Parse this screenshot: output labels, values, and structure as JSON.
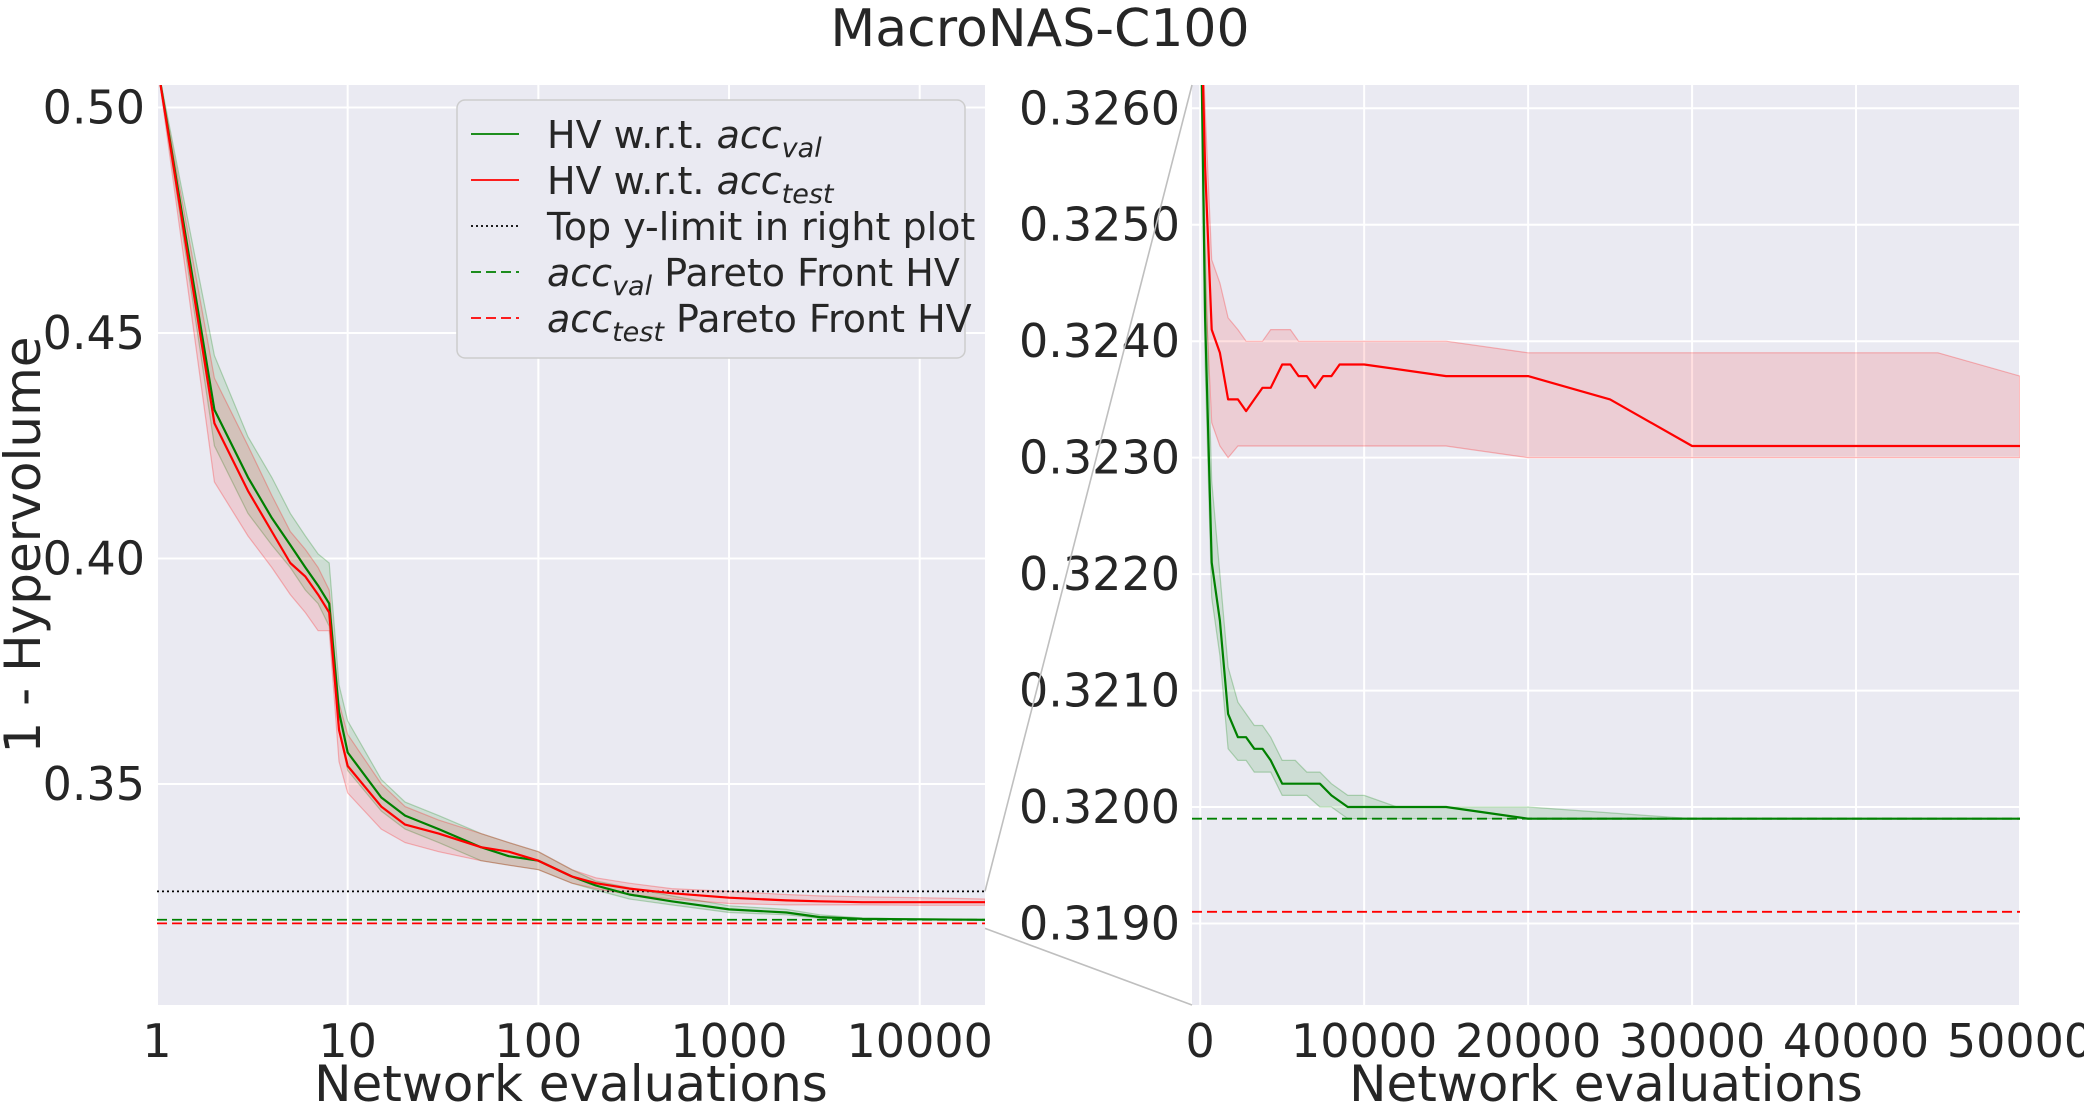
{
  "chart_data": [
    {
      "type": "line",
      "title": "MacroNAS-C100",
      "xlabel": "Network evaluations",
      "ylabel": "1 - Hypervolume",
      "xscale": "log",
      "xlim": [
        1,
        22000
      ],
      "ylim": [
        0.301,
        0.505
      ],
      "xticks": [
        1,
        10,
        100,
        1000,
        10000
      ],
      "xtick_labels": [
        "1",
        "10",
        "100",
        "1000",
        "10000"
      ],
      "yticks": [
        0.35,
        0.4,
        0.45,
        0.5
      ],
      "ytick_labels": [
        "0.35",
        "0.40",
        "0.45",
        "0.50"
      ],
      "grid": true,
      "legend_position": "top-right",
      "legend": [
        {
          "key": "val",
          "base": "HV w.r.t. ",
          "italic": "acc",
          "sub": "val",
          "after": "",
          "style": "solid",
          "color": "#008000"
        },
        {
          "key": "test",
          "base": "HV w.r.t. ",
          "italic": "acc",
          "sub": "test",
          "after": "",
          "style": "solid",
          "color": "#ff0000"
        },
        {
          "key": "toplimit",
          "base": "Top y-limit in right plot",
          "italic": "",
          "sub": "",
          "after": "",
          "style": "dotted",
          "color": "#000000"
        },
        {
          "key": "pf_val",
          "base": "",
          "italic": "acc",
          "sub": "val",
          "after": " Pareto Front HV",
          "style": "dashed",
          "color": "#008000"
        },
        {
          "key": "pf_test",
          "base": "",
          "italic": "acc",
          "sub": "test",
          "after": " Pareto Front HV",
          "style": "dashed",
          "color": "#ff0000"
        }
      ],
      "series": [
        {
          "key": "val",
          "color": "#008000",
          "x": [
            1,
            2,
            3,
            4,
            5,
            6,
            7,
            8,
            9,
            10,
            15,
            20,
            30,
            50,
            70,
            100,
            150,
            200,
            300,
            500,
            1000,
            2000,
            3000,
            5000,
            10000,
            22000
          ],
          "y": [
            0.51,
            0.433,
            0.418,
            0.409,
            0.403,
            0.398,
            0.394,
            0.39,
            0.366,
            0.357,
            0.347,
            0.343,
            0.34,
            0.336,
            0.334,
            0.333,
            0.3295,
            0.3275,
            0.3255,
            0.324,
            0.3222,
            0.3215,
            0.3205,
            0.3201,
            0.32,
            0.3199
          ],
          "lower": [
            0.51,
            0.425,
            0.41,
            0.403,
            0.398,
            0.393,
            0.39,
            0.385,
            0.362,
            0.353,
            0.344,
            0.34,
            0.337,
            0.333,
            0.332,
            0.331,
            0.328,
            0.3265,
            0.3245,
            0.3232,
            0.3215,
            0.321,
            0.3202,
            0.32,
            0.3199,
            0.3199
          ],
          "upper": [
            0.51,
            0.445,
            0.427,
            0.418,
            0.41,
            0.405,
            0.401,
            0.399,
            0.372,
            0.364,
            0.351,
            0.346,
            0.343,
            0.339,
            0.337,
            0.335,
            0.331,
            0.3285,
            0.327,
            0.3252,
            0.323,
            0.3222,
            0.321,
            0.3203,
            0.3201,
            0.32
          ]
        },
        {
          "key": "test",
          "color": "#ff0000",
          "x": [
            1,
            2,
            3,
            4,
            5,
            6,
            7,
            8,
            9,
            10,
            15,
            20,
            30,
            50,
            70,
            100,
            150,
            200,
            300,
            500,
            1000,
            2000,
            3000,
            5000,
            10000,
            22000
          ],
          "y": [
            0.51,
            0.43,
            0.415,
            0.406,
            0.399,
            0.396,
            0.392,
            0.388,
            0.362,
            0.354,
            0.345,
            0.341,
            0.339,
            0.336,
            0.335,
            0.333,
            0.3295,
            0.328,
            0.3268,
            0.3258,
            0.3248,
            0.3242,
            0.324,
            0.3238,
            0.3238,
            0.3238
          ],
          "lower": [
            0.51,
            0.417,
            0.405,
            0.398,
            0.392,
            0.388,
            0.384,
            0.384,
            0.355,
            0.348,
            0.34,
            0.337,
            0.335,
            0.333,
            0.332,
            0.331,
            0.328,
            0.3268,
            0.3255,
            0.3245,
            0.3235,
            0.3232,
            0.3232,
            0.3232,
            0.3231,
            0.3231
          ],
          "upper": [
            0.51,
            0.44,
            0.425,
            0.414,
            0.406,
            0.402,
            0.398,
            0.393,
            0.368,
            0.361,
            0.35,
            0.345,
            0.342,
            0.339,
            0.337,
            0.335,
            0.331,
            0.3292,
            0.328,
            0.3268,
            0.3262,
            0.3255,
            0.3252,
            0.325,
            0.3248,
            0.3245
          ]
        }
      ],
      "hlines": [
        {
          "key": "toplimit",
          "y": 0.3262,
          "style": "dotted",
          "color": "#000000"
        },
        {
          "key": "pf_val",
          "y": 0.3199,
          "style": "dashed",
          "color": "#008000"
        },
        {
          "key": "pf_test",
          "y": 0.3191,
          "style": "dashed",
          "color": "#ff0000"
        }
      ]
    },
    {
      "type": "line",
      "xlabel": "Network evaluations",
      "ylabel": "",
      "xscale": "linear",
      "xlim": [
        -500,
        50000
      ],
      "ylim": [
        0.3183,
        0.3262
      ],
      "xticks": [
        0,
        10000,
        20000,
        30000,
        40000,
        50000
      ],
      "xtick_labels": [
        "0",
        "10000",
        "20000",
        "30000",
        "40000",
        "50000"
      ],
      "yticks": [
        0.319,
        0.32,
        0.321,
        0.322,
        0.323,
        0.324,
        0.325,
        0.326
      ],
      "ytick_labels": [
        "0.3190",
        "0.3200",
        "0.3210",
        "0.3220",
        "0.3230",
        "0.3240",
        "0.3250",
        "0.3260"
      ],
      "grid": true,
      "series": [
        {
          "key": "val",
          "color": "#008000",
          "x": [
            0,
            300,
            700,
            1200,
            1700,
            2300,
            2800,
            3300,
            3800,
            4300,
            5000,
            5800,
            6500,
            7300,
            8000,
            9000,
            10000,
            12000,
            15000,
            20000,
            30000,
            40000,
            50000
          ],
          "y": [
            0.3272,
            0.3242,
            0.3221,
            0.3216,
            0.3208,
            0.3206,
            0.3206,
            0.3205,
            0.3205,
            0.3204,
            0.3202,
            0.3202,
            0.3202,
            0.3202,
            0.3201,
            0.32,
            0.32,
            0.32,
            0.32,
            0.3199,
            0.3199,
            0.3199,
            0.3199
          ],
          "lower": [
            0.3272,
            0.3238,
            0.3218,
            0.3213,
            0.3205,
            0.3204,
            0.3204,
            0.3203,
            0.3203,
            0.3203,
            0.3201,
            0.3201,
            0.3201,
            0.32,
            0.32,
            0.3199,
            0.3199,
            0.3199,
            0.3199,
            0.3199,
            0.3199,
            0.3199,
            0.3199
          ],
          "upper": [
            0.3272,
            0.3248,
            0.3228,
            0.322,
            0.3212,
            0.3209,
            0.3208,
            0.3207,
            0.3207,
            0.3206,
            0.3204,
            0.3204,
            0.3203,
            0.3203,
            0.3202,
            0.3201,
            0.3201,
            0.32,
            0.32,
            0.32,
            0.3199,
            0.3199,
            0.3199
          ]
        },
        {
          "key": "test",
          "color": "#ff0000",
          "x": [
            0,
            300,
            700,
            1200,
            1700,
            2300,
            2800,
            3300,
            3800,
            4300,
            5000,
            5500,
            6000,
            6500,
            7000,
            7500,
            8000,
            8500,
            9000,
            9500,
            10000,
            15000,
            20000,
            25000,
            30000,
            40000,
            45000,
            50000
          ],
          "y": [
            0.3272,
            0.3255,
            0.3241,
            0.3239,
            0.3235,
            0.3235,
            0.3234,
            0.3235,
            0.3236,
            0.3236,
            0.3238,
            0.3238,
            0.3237,
            0.3237,
            0.3236,
            0.3237,
            0.3237,
            0.3238,
            0.3238,
            0.3238,
            0.3238,
            0.3237,
            0.3237,
            0.3235,
            0.3231,
            0.3231,
            0.3231,
            0.3231
          ],
          "lower": [
            0.3272,
            0.3245,
            0.3233,
            0.3231,
            0.323,
            0.3231,
            0.3231,
            0.3231,
            0.3231,
            0.3231,
            0.3231,
            0.3231,
            0.3231,
            0.3231,
            0.3231,
            0.3231,
            0.3231,
            0.3231,
            0.3231,
            0.3231,
            0.3231,
            0.3231,
            0.323,
            0.323,
            0.323,
            0.323,
            0.323,
            0.323
          ],
          "upper": [
            0.3272,
            0.326,
            0.3247,
            0.3245,
            0.3242,
            0.3241,
            0.324,
            0.324,
            0.324,
            0.3241,
            0.3241,
            0.3241,
            0.324,
            0.324,
            0.324,
            0.324,
            0.324,
            0.324,
            0.324,
            0.324,
            0.324,
            0.324,
            0.3239,
            0.3239,
            0.3239,
            0.3239,
            0.3239,
            0.3237
          ]
        }
      ],
      "hlines": [
        {
          "key": "pf_val",
          "y": 0.3199,
          "style": "dashed",
          "color": "#008000"
        },
        {
          "key": "pf_test",
          "y": 0.3191,
          "style": "dashed",
          "color": "#ff0000"
        }
      ]
    }
  ],
  "colors": {
    "plot_background": "#eaeaf2",
    "grid": "#ffffff",
    "text": "#262626",
    "val": "#008000",
    "test": "#ff0000",
    "connector": "#bfbfbf"
  }
}
